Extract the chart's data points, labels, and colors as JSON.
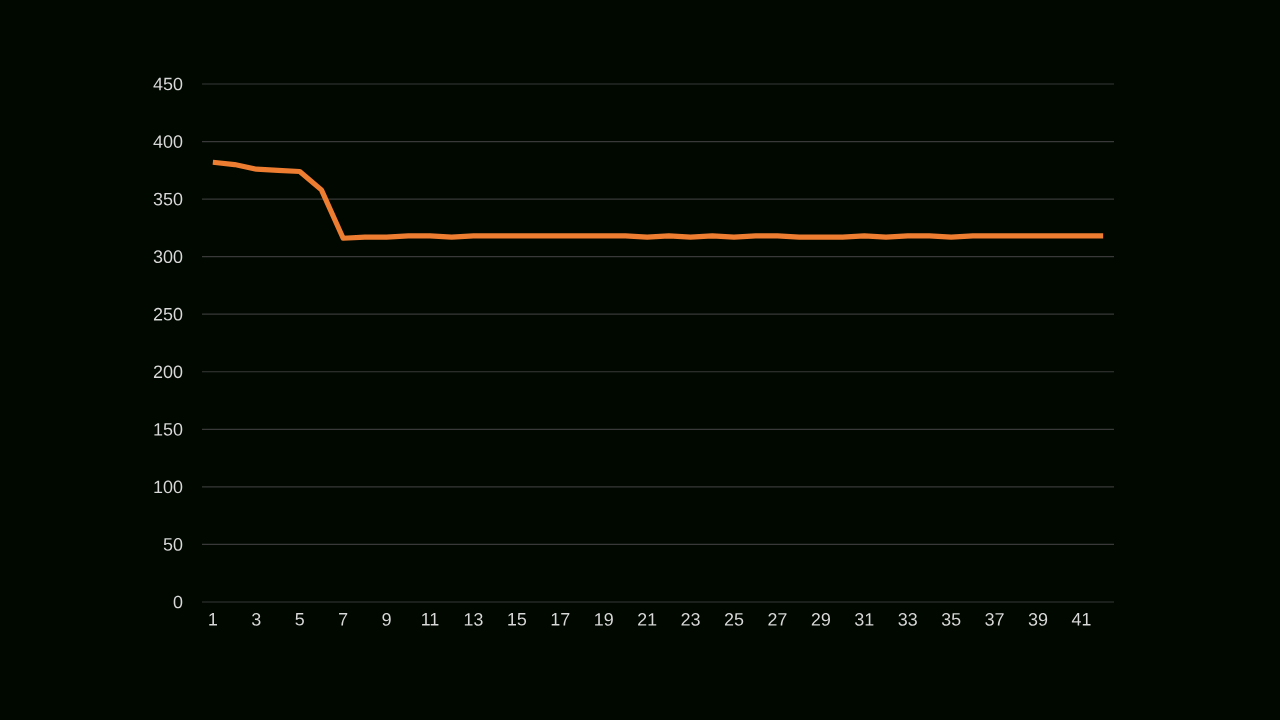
{
  "chart_data": {
    "type": "line",
    "categories": [
      "1",
      null,
      "3",
      null,
      "5",
      null,
      "7",
      null,
      "9",
      null,
      "11",
      null,
      "13",
      null,
      "15",
      null,
      "17",
      null,
      "19",
      null,
      "21",
      null,
      "23",
      null,
      "25",
      null,
      "27",
      null,
      "29",
      null,
      "31",
      null,
      "33",
      null,
      "35",
      null,
      "37",
      null,
      "39",
      null,
      "41",
      null
    ],
    "series": [
      {
        "color": "#ed7d31",
        "values": [
          382,
          380,
          376,
          375,
          374,
          358,
          316,
          317,
          317,
          318,
          318,
          317,
          318,
          318,
          318,
          318,
          318,
          318,
          318,
          318,
          317,
          318,
          317,
          318,
          317,
          318,
          318,
          317,
          317,
          317,
          318,
          317,
          318,
          318,
          317,
          318,
          318,
          318,
          318,
          318,
          318,
          318
        ]
      }
    ],
    "ylim": [
      0,
      450
    ],
    "yticks": [
      0,
      50,
      100,
      150,
      200,
      250,
      300,
      350,
      400,
      450
    ],
    "grid": "y"
  }
}
